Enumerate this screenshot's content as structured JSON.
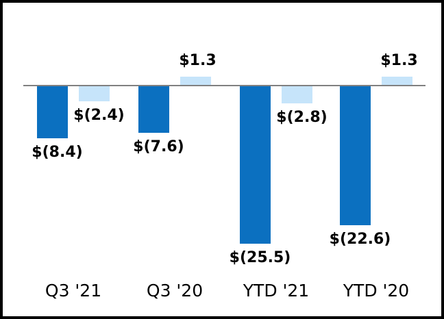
{
  "chart_data": {
    "type": "bar",
    "title": "",
    "categories": [
      "Q3 '21",
      "Q3 '20",
      "YTD '21",
      "YTD '20"
    ],
    "series": [
      {
        "name": "series-1-dark-blue",
        "color": "#0B70C0",
        "values": [
          -8.4,
          -7.6,
          -25.5,
          -22.6
        ],
        "labels": [
          "$(8.4)",
          "$(7.6)",
          "$(25.5)",
          "$(22.6)"
        ]
      },
      {
        "name": "series-2-light-blue",
        "color": "#C6E4FA",
        "values": [
          -2.4,
          1.3,
          -2.8,
          1.3
        ],
        "labels": [
          "$(2.4)",
          "$1.3",
          "$(2.8)",
          "$1.3"
        ]
      }
    ],
    "baseline": 0,
    "axis_line_color": "#808080",
    "label_color": "#000000",
    "frame_border_color": "#000000",
    "grid": false,
    "legend": false,
    "xlabel": "",
    "ylabel": "",
    "ylim": [
      -28,
      6
    ]
  }
}
